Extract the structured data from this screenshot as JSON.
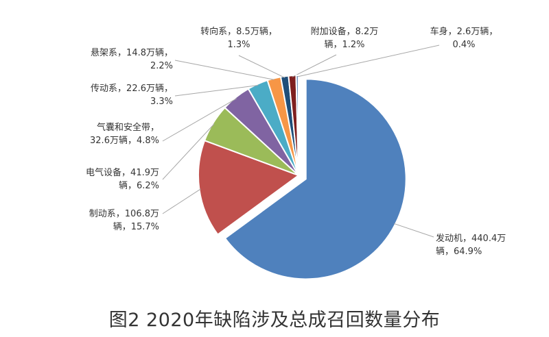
{
  "chart_data": {
    "type": "pie",
    "title": "",
    "caption": "图2  2020年缺陷涉及总成召回数量分布",
    "series": [
      {
        "name": "发动机",
        "value": 440.4,
        "percent": 64.9,
        "color": "#4f81bd",
        "label_lines": [
          "发动机，440.4万",
          "辆，64.9%"
        ]
      },
      {
        "name": "制动系",
        "value": 106.8,
        "percent": 15.7,
        "color": "#c0504d",
        "label_lines": [
          "制动系，106.8万",
          "辆，15.7%"
        ]
      },
      {
        "name": "电气设备",
        "value": 41.9,
        "percent": 6.2,
        "color": "#9bbb59",
        "label_lines": [
          "电气设备，41.9万",
          "辆，6.2%"
        ]
      },
      {
        "name": "气囊和安全带",
        "value": 32.6,
        "percent": 4.8,
        "color": "#8064a2",
        "label_lines": [
          "气囊和安全带，",
          "32.6万辆，4.8%"
        ]
      },
      {
        "name": "传动系",
        "value": 22.6,
        "percent": 3.3,
        "color": "#4bacc6",
        "label_lines": [
          "传动系，22.6万辆，",
          "3.3%"
        ]
      },
      {
        "name": "悬架系",
        "value": 14.8,
        "percent": 2.2,
        "color": "#f79646",
        "label_lines": [
          "悬架系，14.8万辆，",
          "2.2%"
        ]
      },
      {
        "name": "转向系",
        "value": 8.5,
        "percent": 1.3,
        "color": "#1f4e79",
        "label_lines": [
          "转向系，8.5万辆，",
          "1.3%"
        ]
      },
      {
        "name": "附加设备",
        "value": 8.2,
        "percent": 1.2,
        "color": "#7f1f1f",
        "label_lines": [
          "附加设备，8.2万",
          "辆，1.2%"
        ]
      },
      {
        "name": "车身",
        "value": 2.6,
        "percent": 0.4,
        "color": "#6f8fbf",
        "label_lines": [
          "车身，2.6万辆，",
          "0.4%"
        ]
      }
    ]
  }
}
